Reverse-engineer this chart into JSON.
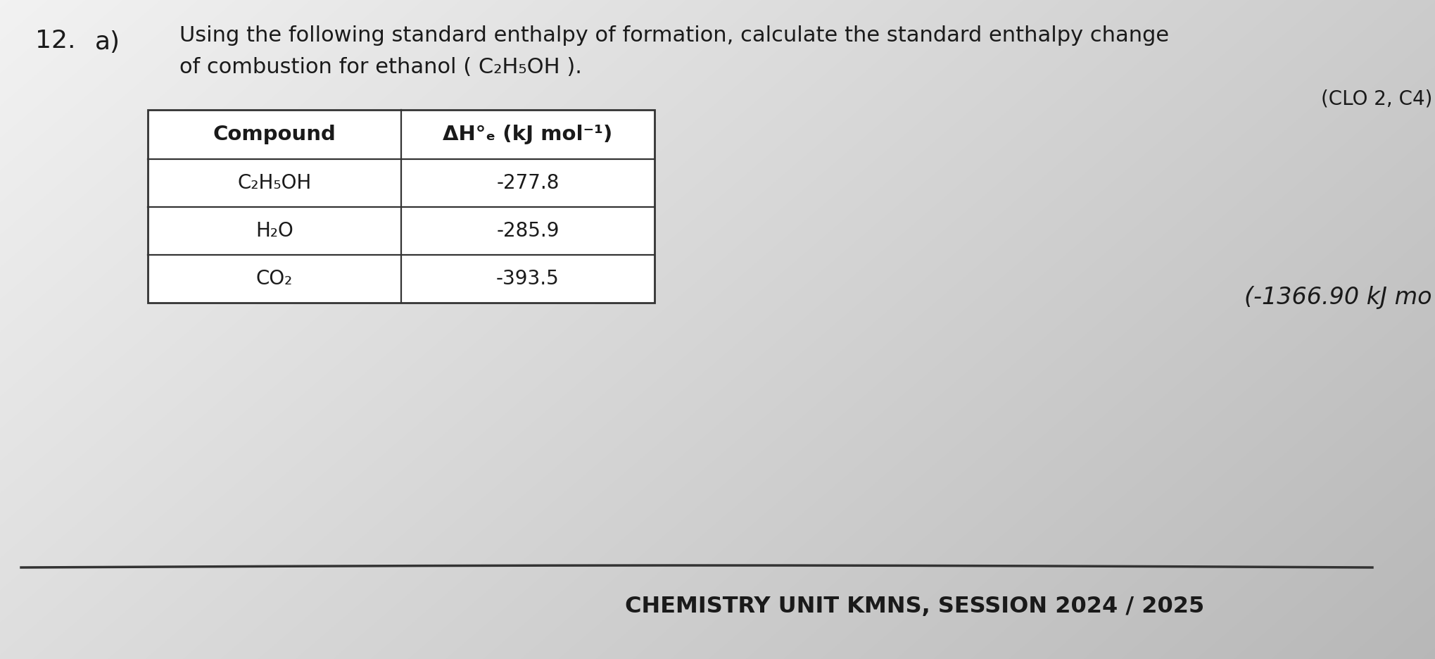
{
  "bg_color_top_left": "#e8e8e8",
  "bg_color_center": "#f0f0f0",
  "bg_color_bottom_right": "#c0c0c0",
  "question_number": "12.",
  "question_part": "a)",
  "question_text_line1": "Using the following standard enthalpy of formation, calculate the standard enthalpy change",
  "question_text_line2": "of combustion for ethanol ( C₂H₅OH ).",
  "clo_text": "(CLO 2, C4)",
  "table_header_col1": "Compound",
  "table_header_col2": "ΔH°f (kJ mol⁻¹)",
  "table_rows": [
    [
      "C₂H₅OH",
      "-277.8"
    ],
    [
      "H₂O",
      "-285.9"
    ],
    [
      "CO₂",
      "-393.5"
    ]
  ],
  "answer_text": "(-1366.90 kJ mo",
  "footer_text": "CHEMISTRY UNIT KMNS, SESSION 2024 / 2025",
  "text_color": "#1a1a1a",
  "table_border_color": "#333333",
  "footer_line_color": "#333333"
}
